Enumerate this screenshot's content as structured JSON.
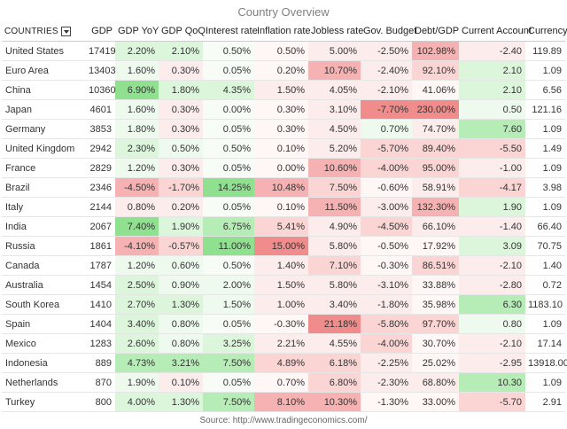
{
  "title": "Country Overview",
  "source": "Source: http://www.tradingeconomics.com/",
  "headers": {
    "countries": "COUNTRIES",
    "gdp": "GDP",
    "gdp_yoy": "GDP YoY",
    "gdp_qoq": "GDP QoQ",
    "interest": "Interest rate",
    "inflation": "Inflation rate",
    "jobless": "Jobless rate",
    "budget": "Gov. Budget",
    "debt": "Debt/GDP",
    "current": "Current Account",
    "currency": "Currency"
  },
  "rows": [
    {
      "country": "United States",
      "gdp": "17419",
      "yoy": "2.20%",
      "qoq": "2.10%",
      "int": "0.50%",
      "inf": "0.50%",
      "job": "5.00%",
      "bud": "-2.50%",
      "debt": "102.98%",
      "ca": "-2.40",
      "cur": "119.89"
    },
    {
      "country": "Euro Area",
      "gdp": "13403",
      "yoy": "1.60%",
      "qoq": "0.30%",
      "int": "0.05%",
      "inf": "0.20%",
      "job": "10.70%",
      "bud": "-2.40%",
      "debt": "92.10%",
      "ca": "2.10",
      "cur": "1.09"
    },
    {
      "country": "China",
      "gdp": "10360",
      "yoy": "6.90%",
      "qoq": "1.80%",
      "int": "4.35%",
      "inf": "1.50%",
      "job": "4.05%",
      "bud": "-2.10%",
      "debt": "41.06%",
      "ca": "2.10",
      "cur": "6.56"
    },
    {
      "country": "Japan",
      "gdp": "4601",
      "yoy": "1.60%",
      "qoq": "0.30%",
      "int": "0.00%",
      "inf": "0.30%",
      "job": "3.10%",
      "bud": "-7.70%",
      "debt": "230.00%",
      "ca": "0.50",
      "cur": "121.16"
    },
    {
      "country": "Germany",
      "gdp": "3853",
      "yoy": "1.80%",
      "qoq": "0.30%",
      "int": "0.05%",
      "inf": "0.30%",
      "job": "4.50%",
      "bud": "0.70%",
      "debt": "74.70%",
      "ca": "7.60",
      "cur": "1.09"
    },
    {
      "country": "United Kingdom",
      "gdp": "2942",
      "yoy": "2.30%",
      "qoq": "0.50%",
      "int": "0.50%",
      "inf": "0.10%",
      "job": "5.20%",
      "bud": "-5.70%",
      "debt": "89.40%",
      "ca": "-5.50",
      "cur": "1.49"
    },
    {
      "country": "France",
      "gdp": "2829",
      "yoy": "1.20%",
      "qoq": "0.30%",
      "int": "0.05%",
      "inf": "0.00%",
      "job": "10.60%",
      "bud": "-4.00%",
      "debt": "95.00%",
      "ca": "-1.00",
      "cur": "1.09"
    },
    {
      "country": "Brazil",
      "gdp": "2346",
      "yoy": "-4.50%",
      "qoq": "-1.70%",
      "int": "14.25%",
      "inf": "10.48%",
      "job": "7.50%",
      "bud": "-0.60%",
      "debt": "58.91%",
      "ca": "-4.17",
      "cur": "3.98"
    },
    {
      "country": "Italy",
      "gdp": "2144",
      "yoy": "0.80%",
      "qoq": "0.20%",
      "int": "0.05%",
      "inf": "0.10%",
      "job": "11.50%",
      "bud": "-3.00%",
      "debt": "132.30%",
      "ca": "1.90",
      "cur": "1.09"
    },
    {
      "country": "India",
      "gdp": "2067",
      "yoy": "7.40%",
      "qoq": "1.90%",
      "int": "6.75%",
      "inf": "5.41%",
      "job": "4.90%",
      "bud": "-4.50%",
      "debt": "66.10%",
      "ca": "-1.40",
      "cur": "66.40"
    },
    {
      "country": "Russia",
      "gdp": "1861",
      "yoy": "-4.10%",
      "qoq": "-0.57%",
      "int": "11.00%",
      "inf": "15.00%",
      "job": "5.80%",
      "bud": "-0.50%",
      "debt": "17.92%",
      "ca": "3.09",
      "cur": "70.75"
    },
    {
      "country": "Canada",
      "gdp": "1787",
      "yoy": "1.20%",
      "qoq": "0.60%",
      "int": "0.50%",
      "inf": "1.40%",
      "job": "7.10%",
      "bud": "-0.30%",
      "debt": "86.51%",
      "ca": "-2.10",
      "cur": "1.40"
    },
    {
      "country": "Australia",
      "gdp": "1454",
      "yoy": "2.50%",
      "qoq": "0.90%",
      "int": "2.00%",
      "inf": "1.50%",
      "job": "5.80%",
      "bud": "-3.10%",
      "debt": "33.88%",
      "ca": "-2.80",
      "cur": "0.72"
    },
    {
      "country": "South Korea",
      "gdp": "1410",
      "yoy": "2.70%",
      "qoq": "1.30%",
      "int": "1.50%",
      "inf": "1.00%",
      "job": "3.40%",
      "bud": "-1.80%",
      "debt": "35.98%",
      "ca": "6.30",
      "cur": "1183.10"
    },
    {
      "country": "Spain",
      "gdp": "1404",
      "yoy": "3.40%",
      "qoq": "0.80%",
      "int": "0.05%",
      "inf": "-0.30%",
      "job": "21.18%",
      "bud": "-5.80%",
      "debt": "97.70%",
      "ca": "0.80",
      "cur": "1.09"
    },
    {
      "country": "Mexico",
      "gdp": "1283",
      "yoy": "2.60%",
      "qoq": "0.80%",
      "int": "3.25%",
      "inf": "2.21%",
      "job": "4.55%",
      "bud": "-4.00%",
      "debt": "30.70%",
      "ca": "-2.10",
      "cur": "17.14"
    },
    {
      "country": "Indonesia",
      "gdp": "889",
      "yoy": "4.73%",
      "qoq": "3.21%",
      "int": "7.50%",
      "inf": "4.89%",
      "job": "6.18%",
      "bud": "-2.25%",
      "debt": "25.02%",
      "ca": "-2.95",
      "cur": "13918.00"
    },
    {
      "country": "Netherlands",
      "gdp": "870",
      "yoy": "1.90%",
      "qoq": "0.10%",
      "int": "0.05%",
      "inf": "0.70%",
      "job": "6.80%",
      "bud": "-2.30%",
      "debt": "68.80%",
      "ca": "10.30",
      "cur": "1.09"
    },
    {
      "country": "Turkey",
      "gdp": "800",
      "yoy": "4.00%",
      "qoq": "1.30%",
      "int": "7.50%",
      "inf": "8.10%",
      "job": "10.30%",
      "bud": "-1.30%",
      "debt": "33.00%",
      "ca": "-5.70",
      "cur": "2.91"
    }
  ],
  "colors": {
    "green_strong": "#8fe08f",
    "green_mid": "#b6ecb6",
    "green_light": "#dcf6dc",
    "green_faint": "#eefaee",
    "red_strong": "#f08c8c",
    "red_mid": "#f6b2b2",
    "red_light": "#fbd4d4",
    "red_faint": "#fdecec"
  }
}
